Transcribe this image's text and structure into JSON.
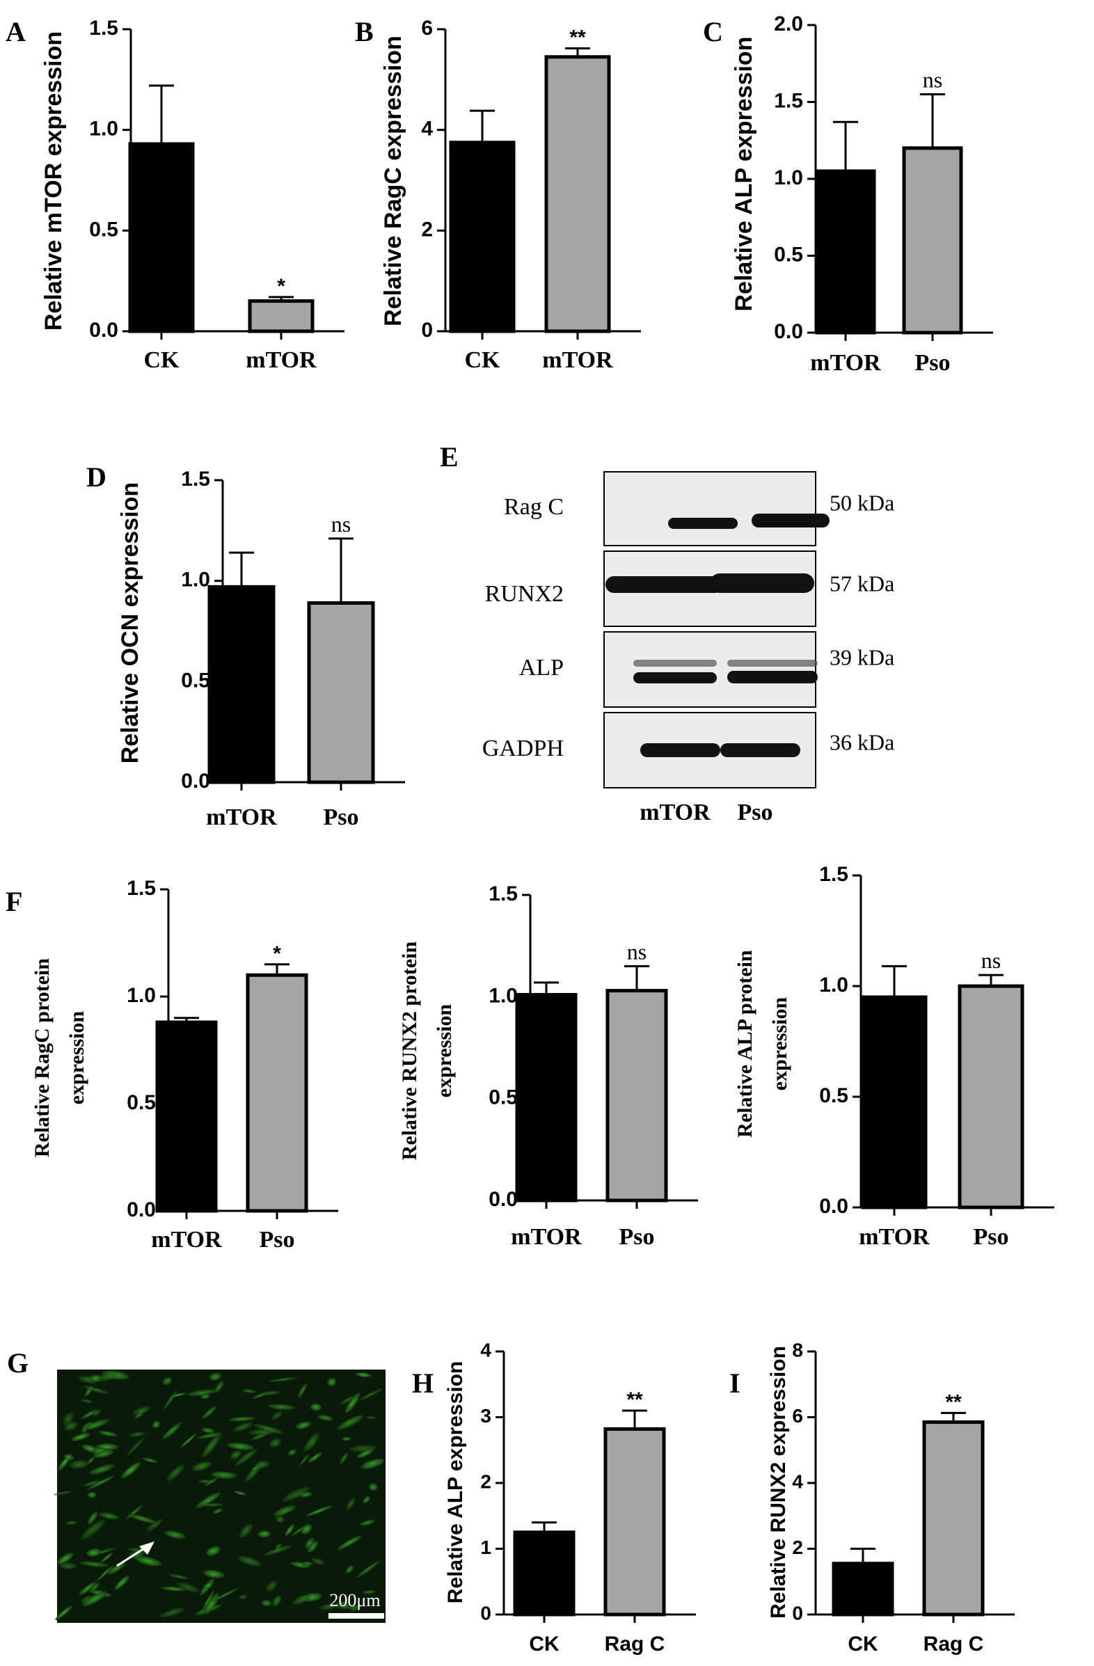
{
  "chart_data": [
    {
      "panel": "A",
      "type": "bar",
      "categories": [
        "CK",
        "mTOR"
      ],
      "values": [
        0.93,
        0.15
      ],
      "errors": [
        0.29,
        0.02
      ],
      "significance": [
        "",
        "*"
      ],
      "ylabel": "Relative mTOR expression",
      "ylim": [
        0,
        1.5
      ],
      "yticks": [
        "0.0",
        "0.5",
        "1.0",
        "1.5"
      ],
      "colors": [
        "#000000",
        "#a6a6a6"
      ]
    },
    {
      "panel": "B",
      "type": "bar",
      "categories": [
        "CK",
        "mTOR"
      ],
      "values": [
        3.75,
        5.45
      ],
      "errors": [
        0.63,
        0.17
      ],
      "significance": [
        "",
        "**"
      ],
      "ylabel": "Relative RagC expression",
      "ylim": [
        0,
        6
      ],
      "yticks": [
        "0",
        "2",
        "4",
        "6"
      ],
      "colors": [
        "#000000",
        "#a6a6a6"
      ]
    },
    {
      "panel": "C",
      "type": "bar",
      "categories": [
        "mTOR",
        "Pso"
      ],
      "values": [
        1.05,
        1.2
      ],
      "errors": [
        0.32,
        0.35
      ],
      "significance": [
        "",
        "ns"
      ],
      "ylabel": "Relative ALP expression",
      "ylim": [
        0,
        2.0
      ],
      "yticks": [
        "0.0",
        "0.5",
        "1.0",
        "1.5",
        "2.0"
      ],
      "colors": [
        "#000000",
        "#a6a6a6"
      ]
    },
    {
      "panel": "D",
      "type": "bar",
      "categories": [
        "mTOR",
        "Pso"
      ],
      "values": [
        0.97,
        0.89
      ],
      "errors": [
        0.17,
        0.32
      ],
      "significance": [
        "",
        "ns"
      ],
      "ylabel": "Relative OCN expression",
      "ylim": [
        0,
        1.5
      ],
      "yticks": [
        "0.0",
        "0.5",
        "1.0",
        "1.5"
      ],
      "colors": [
        "#000000",
        "#a6a6a6"
      ]
    },
    {
      "panel": "F",
      "type": "bar",
      "categories": [
        "mTOR",
        "Pso"
      ],
      "values": [
        0.88,
        1.1
      ],
      "errors": [
        0.02,
        0.05
      ],
      "significance": [
        "",
        "*"
      ],
      "ylabel": [
        "Relative RagC protein",
        "expression"
      ],
      "ylim": [
        0,
        1.5
      ],
      "yticks": [
        "0.0",
        "0.5",
        "1.0",
        "1.5"
      ],
      "colors": [
        "#000000",
        "#a6a6a6"
      ]
    },
    {
      "panel": "",
      "type": "bar",
      "categories": [
        "mTOR",
        "Pso"
      ],
      "values": [
        1.01,
        1.03
      ],
      "errors": [
        0.06,
        0.12
      ],
      "significance": [
        "",
        "ns"
      ],
      "ylabel": [
        "Relative RUNX2 protein",
        "expression"
      ],
      "ylim": [
        0,
        1.5
      ],
      "yticks": [
        "0.0",
        "0.5",
        "1.0",
        "1.5"
      ],
      "colors": [
        "#000000",
        "#a6a6a6"
      ]
    },
    {
      "panel": "",
      "type": "bar",
      "categories": [
        "mTOR",
        "Pso"
      ],
      "values": [
        0.95,
        1.0
      ],
      "errors": [
        0.14,
        0.05
      ],
      "significance": [
        "",
        "ns"
      ],
      "ylabel": [
        "Relative ALP protein",
        "expression"
      ],
      "ylim": [
        0,
        1.5
      ],
      "yticks": [
        "0.0",
        "0.5",
        "1.0",
        "1.5"
      ],
      "colors": [
        "#000000",
        "#a6a6a6"
      ]
    },
    {
      "panel": "H",
      "type": "bar",
      "categories": [
        "CK",
        "Rag C"
      ],
      "values": [
        1.25,
        2.82
      ],
      "errors": [
        0.15,
        0.28
      ],
      "significance": [
        "",
        "**"
      ],
      "ylabel": "Relative ALP expression",
      "ylim": [
        0,
        4
      ],
      "yticks": [
        "0",
        "1",
        "2",
        "3",
        "4"
      ],
      "colors": [
        "#000000",
        "#a6a6a6"
      ]
    },
    {
      "panel": "I",
      "type": "bar",
      "categories": [
        "CK",
        "Rag C"
      ],
      "values": [
        1.55,
        5.85
      ],
      "errors": [
        0.45,
        0.28
      ],
      "significance": [
        "",
        "**"
      ],
      "ylabel": "Relative RUNX2 expression",
      "ylim": [
        0,
        8
      ],
      "yticks": [
        "0",
        "2",
        "4",
        "6",
        "8"
      ],
      "colors": [
        "#000000",
        "#a6a6a6"
      ]
    }
  ],
  "western_blot": {
    "panel": "E",
    "rows": [
      {
        "label": "Rag C",
        "kda": "50 kDa"
      },
      {
        "label": "RUNX2",
        "kda": "57 kDa"
      },
      {
        "label": "ALP",
        "kda": "39 kDa"
      },
      {
        "label": "GADPH",
        "kda": "36 kDa"
      }
    ],
    "lanes": [
      "mTOR",
      "Pso"
    ]
  },
  "micrograph": {
    "panel": "G",
    "scale_bar": "200μm"
  }
}
